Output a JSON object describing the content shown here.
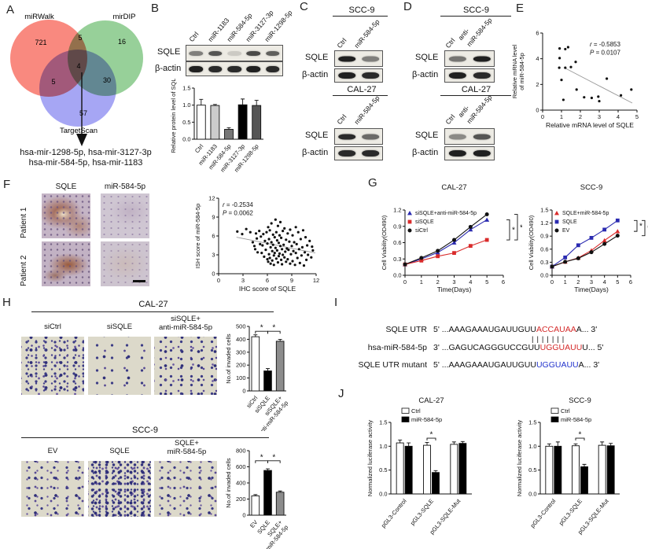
{
  "colors": {
    "seq_red": "#d42a2a",
    "seq_blue": "#2233cc",
    "line_blue": "#2a2ab0",
    "line_red": "#d92b2b",
    "line_black": "#111111",
    "bar_gray": "#8c8c8c"
  },
  "panels": {
    "A": {
      "label": "A",
      "set1": "miRWalk",
      "set2": "mirDIP",
      "set3": "TargetScan",
      "n1": "721",
      "n2": "16",
      "n3": "57",
      "n12": "5",
      "n13": "5",
      "n23": "30",
      "n123": "4",
      "result1": "hsa-mir-1298-5p, hsa-mir-3127-3p",
      "result2": "hsa-mir-584-5p, hsa-mir-1183"
    },
    "B": {
      "label": "B",
      "lanes": [
        "Ctrl",
        "miR-1183",
        "miR-584-5p",
        "miR-3127-3p",
        "miR-1298-5p"
      ],
      "row1": "SQLE",
      "row2": "β-actin",
      "blots": {
        "sqle": [
          0.5,
          0.7,
          0.15,
          0.75,
          0.65
        ],
        "actin": [
          0.95,
          0.9,
          0.9,
          0.95,
          0.9
        ]
      }
    },
    "C": {
      "label": "C",
      "title1": "SCC-9",
      "title2": "CAL-27",
      "lane1": "Ctrl",
      "lane2": "miR-584-5p",
      "row1": "SQLE",
      "row2": "β-actin",
      "blots": {
        "scc9_sqle": [
          0.95,
          0.5
        ],
        "scc9_actin": [
          0.95,
          0.9
        ],
        "cal27_sqle": [
          0.9,
          0.6
        ],
        "cal27_actin": [
          0.9,
          0.9
        ]
      }
    },
    "D": {
      "label": "D",
      "title1": "SCC-9",
      "title2": "CAL-27",
      "lane1": "Ctrl",
      "lane2a": "anti-",
      "lane2b": "miR-584-5p",
      "row1": "SQLE",
      "row2": "β-actin",
      "blots": {
        "scc9_sqle": [
          0.55,
          0.95
        ],
        "scc9_actin": [
          0.95,
          0.9
        ],
        "cal27_sqle": [
          0.45,
          0.7
        ],
        "cal27_actin": [
          0.95,
          0.95
        ]
      }
    },
    "E": {
      "label": "E"
    },
    "F": {
      "label": "F",
      "col1": "SQLE",
      "col2": "miR-584-5p",
      "rowA": "Patient 1",
      "rowB": "Patient 2"
    },
    "G": {
      "label": "G"
    },
    "H": {
      "label": "H",
      "sec1": {
        "title": "CAL-27",
        "lab1": "siCtrl",
        "lab2": "siSQLE",
        "lab3a": "siSQLE+",
        "lab3b": "anti-miR-584-5p"
      },
      "sec2": {
        "title": "SCC-9",
        "lab1": "EV",
        "lab2": "SQLE",
        "lab3a": "SQLE+",
        "lab3b": "miR-584-5p"
      }
    },
    "I": {
      "label": "I",
      "utr": {
        "name": "SQLE UTR",
        "prefix": "5' ...",
        "black": "AAAGAAAUGAUUGUU",
        "colored": "ACCAUAA",
        "suffix": "A... 3'"
      },
      "pairing": "|||||||",
      "mir": {
        "name": "hsa-miR-584-5p",
        "prefix": "3' ...",
        "black": "GAGUCAGGGUCCGUU",
        "colored": "UGGUAUU",
        "suffix": "U... 5'"
      },
      "mut": {
        "name": "SQLE UTR mutant",
        "prefix": "5' ...",
        "black": "AAAGAAAUGAUUGUU",
        "colored": "UGGUAUU",
        "suffix": "A... 3'"
      }
    },
    "J": {
      "label": "J"
    }
  },
  "chart_data": {
    "b_bar": {
      "type": "bar",
      "ylabel": "Relative protein level of SQLE",
      "categories": [
        "Ctrl",
        "miR-1183",
        "miR-584-5p",
        "miR-3127-3p",
        "miR-1298-5p"
      ],
      "values": [
        1.0,
        0.99,
        0.29,
        1.01,
        0.99
      ],
      "errors": [
        0.17,
        0.03,
        0.05,
        0.17,
        0.15
      ],
      "colors": [
        "#ffffff",
        "#cccccc",
        "#777777",
        "#000000",
        "#555555"
      ],
      "ylim": [
        0,
        1.5
      ],
      "yticks": [
        "0.0",
        "0.5",
        "1.0",
        "1.5"
      ]
    },
    "e_scatter": {
      "type": "scatter",
      "xlabel": "Relative mRNA level of SQLE",
      "ylabel": [
        "Relative mRNA level",
        "of miR-584-5p"
      ],
      "xlim": [
        0,
        5
      ],
      "ylim": [
        0,
        6
      ],
      "xticks": [
        "0",
        "1",
        "2",
        "3",
        "4",
        "5"
      ],
      "yticks": [
        "0",
        "2",
        "4",
        "6"
      ],
      "points": [
        [
          0.9,
          4.8
        ],
        [
          1.2,
          4.75
        ],
        [
          1.35,
          4.9
        ],
        [
          0.9,
          4.05
        ],
        [
          0.88,
          3.3
        ],
        [
          1.2,
          3.3
        ],
        [
          1.5,
          3.35
        ],
        [
          1.75,
          3.75
        ],
        [
          1.0,
          2.35
        ],
        [
          1.1,
          0.8
        ],
        [
          1.8,
          1.6
        ],
        [
          2.2,
          1.0
        ],
        [
          2.6,
          0.95
        ],
        [
          2.95,
          1.05
        ],
        [
          3.0,
          0.7
        ],
        [
          3.4,
          2.45
        ],
        [
          4.15,
          1.15
        ],
        [
          4.7,
          1.6
        ]
      ],
      "trend": [
        [
          1.15,
          3.3
        ],
        [
          4.75,
          0.55
        ]
      ],
      "annotation": [
        "r = -0.5853",
        "P = 0.0107"
      ],
      "ann_pos": [
        0.5,
        0.08
      ]
    },
    "f_scatter": {
      "type": "scatter",
      "xlabel": "IHC score of SQLE",
      "ylabel": [
        "ISH score of miR-584-5p"
      ],
      "xlim": [
        0,
        12
      ],
      "ylim": [
        0,
        12
      ],
      "xticks": [
        "0",
        "3",
        "6",
        "9",
        "12"
      ],
      "yticks": [
        "0",
        "3",
        "6",
        "9",
        "12"
      ],
      "points": [
        [
          2.3,
          6.7
        ],
        [
          2.9,
          6.3
        ],
        [
          3.4,
          7.1
        ],
        [
          3.9,
          6.6
        ],
        [
          4.2,
          5.0
        ],
        [
          4.4,
          4.4
        ],
        [
          4.5,
          3.9
        ],
        [
          4.6,
          6.4
        ],
        [
          4.7,
          5.6
        ],
        [
          4.8,
          3.4
        ],
        [
          5.0,
          6.8
        ],
        [
          5.1,
          4.7
        ],
        [
          5.2,
          5.9
        ],
        [
          5.3,
          3.3
        ],
        [
          5.4,
          4.5
        ],
        [
          5.5,
          6.3
        ],
        [
          5.6,
          2.7
        ],
        [
          5.7,
          5.2
        ],
        [
          5.8,
          3.8
        ],
        [
          5.9,
          6.6
        ],
        [
          6.0,
          2.3
        ],
        [
          6.0,
          4.8
        ],
        [
          6.1,
          7.4
        ],
        [
          6.1,
          1.9
        ],
        [
          6.2,
          5.5
        ],
        [
          6.2,
          3.1
        ],
        [
          6.3,
          6.9
        ],
        [
          6.3,
          2.5
        ],
        [
          6.4,
          4.2
        ],
        [
          6.4,
          1.6
        ],
        [
          6.5,
          8.0
        ],
        [
          6.5,
          5.0
        ],
        [
          6.6,
          3.6
        ],
        [
          6.6,
          2.1
        ],
        [
          6.7,
          6.2
        ],
        [
          6.7,
          4.6
        ],
        [
          6.8,
          2.9
        ],
        [
          6.8,
          1.4
        ],
        [
          6.9,
          5.8
        ],
        [
          6.9,
          3.3
        ],
        [
          7.0,
          8.6
        ],
        [
          7.0,
          4.1
        ],
        [
          7.1,
          6.6
        ],
        [
          7.1,
          2.4
        ],
        [
          7.2,
          5.3
        ],
        [
          7.2,
          3.7
        ],
        [
          7.3,
          7.6
        ],
        [
          7.3,
          1.8
        ],
        [
          7.4,
          4.9
        ],
        [
          7.4,
          2.8
        ],
        [
          7.5,
          6.1
        ],
        [
          7.5,
          3.2
        ],
        [
          7.6,
          8.2
        ],
        [
          7.6,
          4.4
        ],
        [
          7.7,
          2.2
        ],
        [
          7.7,
          5.7
        ],
        [
          7.8,
          3.9
        ],
        [
          7.8,
          1.5
        ],
        [
          7.9,
          6.8
        ],
        [
          7.9,
          3.0
        ],
        [
          8.0,
          4.6
        ],
        [
          8.1,
          2.6
        ],
        [
          8.1,
          7.2
        ],
        [
          8.2,
          3.5
        ],
        [
          8.3,
          5.4
        ],
        [
          8.3,
          1.9
        ],
        [
          8.4,
          4.0
        ],
        [
          8.5,
          6.4
        ],
        [
          8.5,
          2.3
        ],
        [
          8.6,
          3.8
        ],
        [
          8.7,
          5.1
        ],
        [
          8.8,
          1.6
        ],
        [
          8.8,
          7.0
        ],
        [
          8.9,
          3.1
        ],
        [
          9.0,
          4.4
        ],
        [
          9.1,
          2.0
        ],
        [
          9.1,
          6.1
        ],
        [
          9.2,
          3.6
        ],
        [
          9.3,
          5.0
        ],
        [
          9.4,
          1.4
        ],
        [
          9.5,
          7.4
        ],
        [
          9.5,
          3.3
        ],
        [
          9.6,
          4.7
        ],
        [
          9.7,
          2.5
        ],
        [
          9.8,
          6.6
        ],
        [
          9.9,
          3.9
        ],
        [
          10.0,
          1.7
        ],
        [
          10.1,
          5.5
        ],
        [
          10.2,
          2.9
        ],
        [
          10.3,
          4.2
        ],
        [
          10.4,
          6.9
        ],
        [
          10.5,
          1.3
        ],
        [
          10.6,
          3.4
        ],
        [
          10.7,
          5.8
        ],
        [
          10.8,
          2.2
        ],
        [
          10.9,
          4.5
        ],
        [
          11.0,
          3.0
        ],
        [
          11.2,
          5.2
        ],
        [
          11.4,
          2.6
        ],
        [
          11.5,
          4.3
        ],
        [
          11.6,
          3.7
        ]
      ],
      "trend": [
        [
          2.2,
          5.8
        ],
        [
          11.9,
          3.3
        ]
      ],
      "annotation": [
        "r = -0.2534",
        "P = 0.0062"
      ],
      "ann_pos": [
        0.04,
        0.02
      ]
    },
    "g_cal27": {
      "type": "line",
      "title": "CAL-27",
      "xlabel": "Time(Days)",
      "ylabel": "Cell Viability(OD490)",
      "x": [
        0,
        1,
        2,
        3,
        4,
        5
      ],
      "xlim": [
        0,
        6
      ],
      "xticks": [
        "0",
        "1",
        "2",
        "3",
        "4",
        "5",
        "6"
      ],
      "ylim": [
        0,
        1.2
      ],
      "yticks": [
        "0.0",
        "0.3",
        "0.6",
        "0.9",
        "1.2"
      ],
      "series": [
        {
          "name": "siSQLE+anti-miR-584-5p",
          "color": "#2a2ab0",
          "marker": "triangle",
          "values": [
            0.2,
            0.3,
            0.42,
            0.6,
            0.84,
            1.02
          ]
        },
        {
          "name": "siSQLE",
          "color": "#d92b2b",
          "marker": "square",
          "values": [
            0.2,
            0.27,
            0.35,
            0.41,
            0.54,
            0.65
          ]
        },
        {
          "name": "siCtrl",
          "color": "#111111",
          "marker": "circle",
          "values": [
            0.2,
            0.32,
            0.45,
            0.65,
            0.89,
            1.12
          ]
        }
      ],
      "brackets": [
        {
          "y1": 1.02,
          "y2": 0.65,
          "dx": 4
        },
        {
          "y1": 1.12,
          "y2": 0.65,
          "dx": 14
        }
      ],
      "star": "*"
    },
    "g_scc9": {
      "type": "line",
      "title": "SCC-9",
      "xlabel": "Time(Days)",
      "ylabel": "Cell Viability(OD490)",
      "x": [
        0,
        1,
        2,
        3,
        4,
        5
      ],
      "xlim": [
        0,
        6
      ],
      "xticks": [
        "0",
        "1",
        "2",
        "3",
        "4",
        "5",
        "6"
      ],
      "ylim": [
        0,
        1.5
      ],
      "yticks": [
        "0.0",
        "0.3",
        "0.6",
        "0.9",
        "1.2",
        "1.5"
      ],
      "series": [
        {
          "name": "SQLE+miR-584-5p",
          "color": "#d92b2b",
          "marker": "triangle",
          "values": [
            0.2,
            0.31,
            0.4,
            0.57,
            0.8,
            1.01
          ]
        },
        {
          "name": "SQLE",
          "color": "#2a2ab0",
          "marker": "square",
          "values": [
            0.2,
            0.41,
            0.69,
            0.86,
            1.05,
            1.26
          ]
        },
        {
          "name": "EV",
          "color": "#111111",
          "marker": "circle",
          "values": [
            0.2,
            0.31,
            0.39,
            0.53,
            0.72,
            0.91
          ]
        }
      ],
      "brackets": [
        {
          "y1": 1.26,
          "y2": 1.01,
          "dx": 4
        },
        {
          "y1": 1.26,
          "y2": 0.91,
          "dx": 14
        }
      ],
      "star": "*"
    },
    "h_cal27": {
      "type": "bar",
      "ylabel": "No.of invaded cells",
      "categories": [
        [
          "siCtrl"
        ],
        [
          "siSQLE"
        ],
        [
          "siSQLE+",
          "anti-miR-584-5p"
        ]
      ],
      "values": [
        420,
        155,
        385
      ],
      "errors": [
        15,
        18,
        15
      ],
      "colors": [
        "#ffffff",
        "#000000",
        "#8c8c8c"
      ],
      "ylim": [
        0,
        500
      ],
      "yticks": [
        "0",
        "100",
        "200",
        "300",
        "400",
        "500"
      ],
      "sig": [
        {
          "a": 0,
          "b": 1,
          "y": 462
        },
        {
          "a": 1,
          "b": 2,
          "y": 462
        }
      ],
      "star": "*"
    },
    "h_scc9": {
      "type": "bar",
      "ylabel": "No.of invaded cells",
      "categories": [
        [
          "EV"
        ],
        [
          "SQLE"
        ],
        [
          "SQLE+",
          "miR-584-5p"
        ]
      ],
      "values": [
        240,
        555,
        285
      ],
      "errors": [
        15,
        20,
        15
      ],
      "colors": [
        "#ffffff",
        "#000000",
        "#8c8c8c"
      ],
      "ylim": [
        0,
        800
      ],
      "yticks": [
        "0",
        "200",
        "400",
        "600",
        "800"
      ],
      "sig": [
        {
          "a": 0,
          "b": 1,
          "y": 675
        },
        {
          "a": 1,
          "b": 2,
          "y": 675
        }
      ],
      "star": "*"
    },
    "j_cal27": {
      "type": "groupedbar",
      "title": "CAL-27",
      "ylabel": "Normalized luciferase activity",
      "categories": [
        "pGL3-Control",
        "pGL3-SQLE",
        "pGL3-SQLE-Mut"
      ],
      "series": [
        {
          "name": "Ctrl",
          "color": "#ffffff",
          "values": [
            1.07,
            1.02,
            1.04
          ],
          "errors": [
            0.06,
            0.06,
            0.05
          ]
        },
        {
          "name": "miR-584-5p",
          "color": "#000000",
          "values": [
            1.0,
            0.45,
            1.06
          ],
          "errors": [
            0.07,
            0.04,
            0.04
          ]
        }
      ],
      "ylim": [
        0,
        1.5
      ],
      "yticks": [
        "0.0",
        "0.5",
        "1.0",
        "1.5"
      ],
      "sig": [
        {
          "cat": 1,
          "y": 1.17
        }
      ],
      "star": "*"
    },
    "j_scc9": {
      "type": "groupedbar",
      "title": "SCC-9",
      "ylabel": "Normalized luciferase activity",
      "categories": [
        "pGL3-Control",
        "pGL3-SQLE",
        "pGL3-SQLE-Mut"
      ],
      "series": [
        {
          "name": "Ctrl",
          "color": "#ffffff",
          "values": [
            1.0,
            1.01,
            1.02
          ],
          "errors": [
            0.05,
            0.04,
            0.07
          ]
        },
        {
          "name": "miR-584-5p",
          "color": "#000000",
          "values": [
            1.0,
            0.57,
            1.01
          ],
          "errors": [
            0.09,
            0.05,
            0.05
          ]
        }
      ],
      "ylim": [
        0,
        1.5
      ],
      "yticks": [
        "0.0",
        "0.5",
        "1.0",
        "1.5"
      ],
      "sig": [
        {
          "cat": 1,
          "y": 1.17
        }
      ],
      "star": "*"
    }
  }
}
